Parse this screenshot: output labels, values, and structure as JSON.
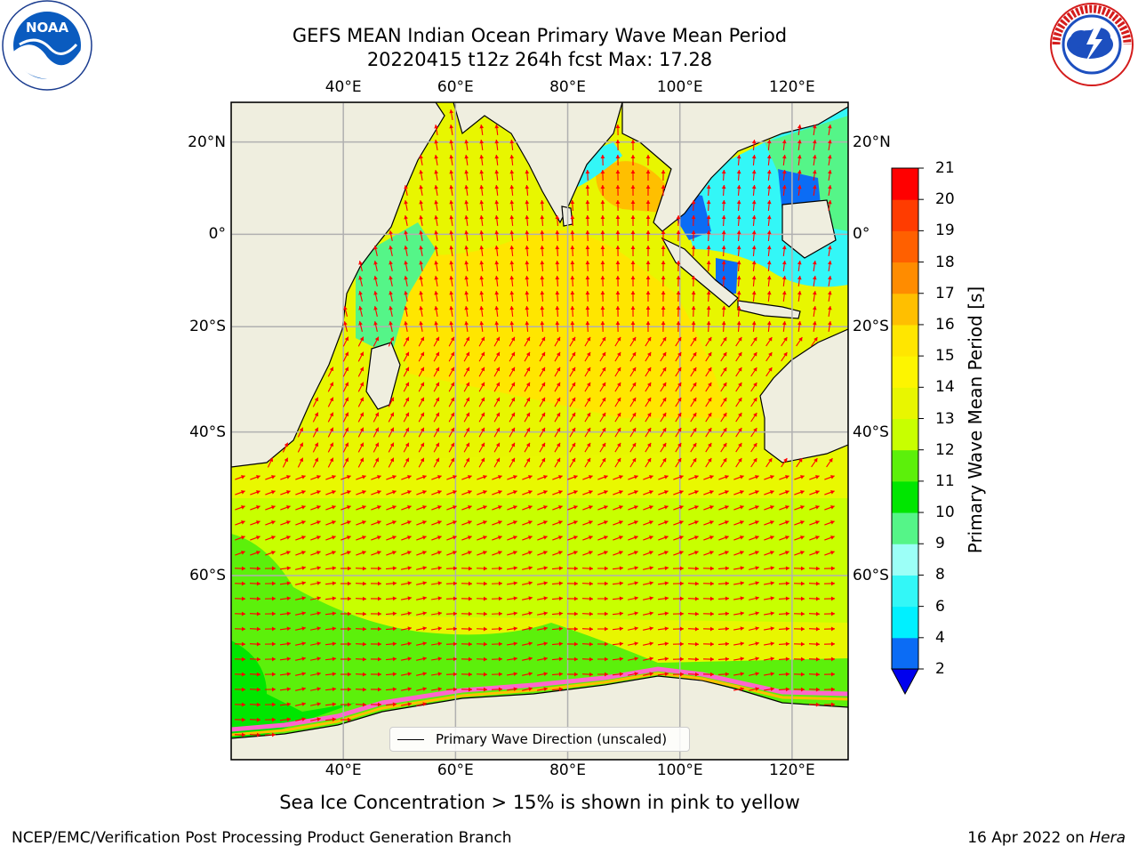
{
  "title": {
    "line1": "GEFS MEAN Indian Ocean Primary Wave Mean Period",
    "line2": "20220415 t12z 264h fcst   Max: 17.28"
  },
  "map": {
    "region": "Indian Ocean",
    "lon_range": [
      20,
      130
    ],
    "lat_range": [
      -75,
      28
    ],
    "lon_ticks": [
      "40°E",
      "60°E",
      "80°E",
      "100°E",
      "120°E"
    ],
    "lat_ticks": [
      "20°N",
      "0°",
      "20°S",
      "40°S",
      "60°S"
    ],
    "legend_label": "Primary Wave Direction (unscaled)",
    "arrow_color": "#ff0000",
    "land_color": "#efeedf",
    "ice_color": "#ffffff"
  },
  "colorbar": {
    "label": "Primary Wave Mean Period [s]",
    "ticks": [
      "2",
      "4",
      "6",
      "8",
      "9",
      "10",
      "11",
      "12",
      "13",
      "14",
      "15",
      "16",
      "17",
      "18",
      "19",
      "20",
      "21"
    ],
    "colors": [
      "#0b6cf5",
      "#00f0ff",
      "#33f7f7",
      "#9cfff7",
      "#55f588",
      "#00e600",
      "#5cf00b",
      "#c8ff00",
      "#e8f600",
      "#fdf500",
      "#ffe600",
      "#ffbf00",
      "#ff8c00",
      "#ff6000",
      "#ff3c00",
      "#ff0000"
    ],
    "extend_color": "#0000ee"
  },
  "subtitle": "Sea Ice Concentration > 15% is shown in pink to yellow",
  "footer": {
    "left": "NCEP/EMC/Verification Post Processing Product Generation Branch",
    "date": "16 Apr 2022 on ",
    "machine": "Hera"
  },
  "logos": {
    "noaa_text": "NOAA",
    "noaa_ring": "NATIONAL OCEANIC AND ATMOSPHERIC ADMINISTRATION · U.S. DEPARTMENT OF COMMERCE",
    "nws_ring": "NATIONAL WEATHER SERVICE"
  },
  "chart_data": {
    "type": "heatmap",
    "title": "GEFS MEAN Indian Ocean Primary Wave Mean Period",
    "max_value": 17.28,
    "units": "s",
    "zlabel": "Primary Wave Mean Period [s]",
    "color_levels": [
      2,
      4,
      6,
      8,
      9,
      10,
      11,
      12,
      13,
      14,
      15,
      16,
      17,
      18,
      19,
      20,
      21
    ],
    "zones": [
      {
        "lon": [
          50,
          80
        ],
        "lat": [
          15,
          25
        ],
        "value": 15
      },
      {
        "lon": [
          85,
          97
        ],
        "lat": [
          10,
          20
        ],
        "value": 16
      },
      {
        "lon": [
          60,
          72
        ],
        "lat": [
          -20,
          -10
        ],
        "value": 16
      },
      {
        "lon": [
          20,
          130
        ],
        "lat": [
          -45,
          -30
        ],
        "value": 14
      },
      {
        "lon": [
          20,
          130
        ],
        "lat": [
          -60,
          -45
        ],
        "value": 13
      },
      {
        "lon": [
          20,
          130
        ],
        "lat": [
          -70,
          -60
        ],
        "value": 11
      },
      {
        "lon": [
          100,
          130
        ],
        "lat": [
          -10,
          20
        ],
        "value": 8
      }
    ],
    "ice_edge_lat": -67
  }
}
